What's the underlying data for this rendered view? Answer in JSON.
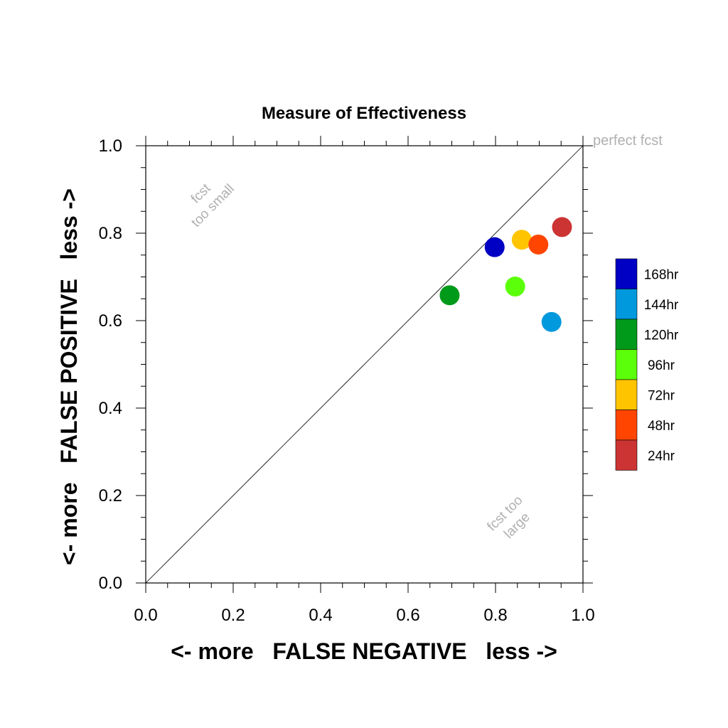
{
  "chart_data": {
    "type": "scatter",
    "title": "Measure of Effectiveness",
    "xlabel": "<- more   FALSE NEGATIVE   less ->",
    "ylabel": "<- more   FALSE POSITIVE   less ->",
    "xlim": [
      0,
      1
    ],
    "ylim": [
      0,
      1
    ],
    "x_ticks": [
      "0.0",
      "0.2",
      "0.4",
      "0.6",
      "0.8",
      "1.0"
    ],
    "y_ticks": [
      "0.0",
      "0.2",
      "0.4",
      "0.6",
      "0.8",
      "1.0"
    ],
    "grid": false,
    "legend_position": "right",
    "annotations": {
      "perfect": "perfect fcst",
      "too_small": [
        "fcst",
        "too small"
      ],
      "too_large": [
        "fcst too",
        "large"
      ]
    },
    "series": [
      {
        "name": "168hr",
        "color": "#0000c4",
        "x": 0.798,
        "y": 0.768
      },
      {
        "name": "144hr",
        "color": "#0099dd",
        "x": 0.928,
        "y": 0.597
      },
      {
        "name": "120hr",
        "color": "#009a1a",
        "x": 0.695,
        "y": 0.658
      },
      {
        "name": "96hr",
        "color": "#5cff0a",
        "x": 0.845,
        "y": 0.678
      },
      {
        "name": "72hr",
        "color": "#ffc400",
        "x": 0.86,
        "y": 0.785
      },
      {
        "name": "48hr",
        "color": "#ff4500",
        "x": 0.898,
        "y": 0.774
      },
      {
        "name": "24hr",
        "color": "#cc3333",
        "x": 0.952,
        "y": 0.814
      }
    ]
  }
}
